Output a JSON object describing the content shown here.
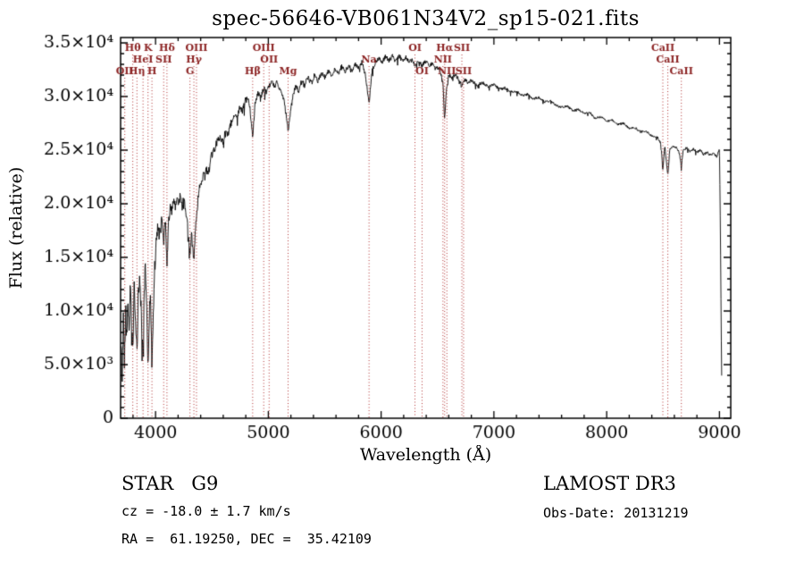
{
  "chart_data": {
    "type": "line",
    "title": "spec-56646-VB061N34V2_sp15-021.fits",
    "xlabel": "Wavelength (Å)",
    "ylabel": "Flux (relative)",
    "xlim": [
      3690,
      9100
    ],
    "ylim": [
      0,
      35500
    ],
    "grid": false,
    "legend": "none",
    "xticks": [
      {
        "value": 4000,
        "label": "4000"
      },
      {
        "value": 5000,
        "label": "5000"
      },
      {
        "value": 6000,
        "label": "6000"
      },
      {
        "value": 7000,
        "label": "7000"
      },
      {
        "value": 8000,
        "label": "8000"
      },
      {
        "value": 9000,
        "label": "9000"
      }
    ],
    "yticks": [
      {
        "value": 0,
        "label": "0"
      },
      {
        "value": 5000,
        "label": "5.0×10³"
      },
      {
        "value": 10000,
        "label": "1.0×10⁴"
      },
      {
        "value": 15000,
        "label": "1.5×10⁴"
      },
      {
        "value": 20000,
        "label": "2.0×10⁴"
      },
      {
        "value": 25000,
        "label": "2.5×10⁴"
      },
      {
        "value": 30000,
        "label": "3.0×10⁴"
      },
      {
        "value": 35000,
        "label": "3.5×10⁴"
      }
    ],
    "x_minor_step": 200,
    "y_minor_step": 1000,
    "series": [
      {
        "name": "spectrum",
        "color": "#000000",
        "points": [
          [
            3695,
            6500
          ],
          [
            3705,
            3800
          ],
          [
            3715,
            9800
          ],
          [
            3725,
            5200
          ],
          [
            3735,
            10500
          ],
          [
            3745,
            6800
          ],
          [
            3755,
            11500
          ],
          [
            3765,
            8000
          ],
          [
            3775,
            12000
          ],
          [
            3785,
            9500
          ],
          [
            3798,
            6200
          ],
          [
            3810,
            11800
          ],
          [
            3822,
            8800
          ],
          [
            3835,
            6000
          ],
          [
            3848,
            12200
          ],
          [
            3860,
            13000
          ],
          [
            3875,
            9200
          ],
          [
            3889,
            5800
          ],
          [
            3900,
            12500
          ],
          [
            3912,
            13800
          ],
          [
            3925,
            9000
          ],
          [
            3933,
            4300
          ],
          [
            3944,
            9500
          ],
          [
            3955,
            12500
          ],
          [
            3968,
            4200
          ],
          [
            3980,
            9800
          ],
          [
            3992,
            14000
          ],
          [
            4005,
            16000
          ],
          [
            4020,
            17800
          ],
          [
            4035,
            16800
          ],
          [
            4050,
            18800
          ],
          [
            4065,
            17500
          ],
          [
            4072,
            16500
          ],
          [
            4085,
            18800
          ],
          [
            4101,
            14200
          ],
          [
            4115,
            18200
          ],
          [
            4130,
            19800
          ],
          [
            4145,
            19200
          ],
          [
            4160,
            20300
          ],
          [
            4175,
            19600
          ],
          [
            4190,
            20600
          ],
          [
            4205,
            19900
          ],
          [
            4220,
            20800
          ],
          [
            4235,
            19800
          ],
          [
            4250,
            20400
          ],
          [
            4265,
            19400
          ],
          [
            4280,
            18400
          ],
          [
            4295,
            16200
          ],
          [
            4305,
            15400
          ],
          [
            4318,
            17200
          ],
          [
            4330,
            15800
          ],
          [
            4340,
            14800
          ],
          [
            4352,
            17600
          ],
          [
            4363,
            18800
          ],
          [
            4378,
            20500
          ],
          [
            4395,
            21800
          ],
          [
            4420,
            22600
          ],
          [
            4445,
            23200
          ],
          [
            4470,
            23000
          ],
          [
            4495,
            24400
          ],
          [
            4520,
            25000
          ],
          [
            4545,
            25800
          ],
          [
            4570,
            26200
          ],
          [
            4595,
            25800
          ],
          [
            4620,
            26800
          ],
          [
            4645,
            26400
          ],
          [
            4670,
            27600
          ],
          [
            4695,
            28200
          ],
          [
            4720,
            28000
          ],
          [
            4745,
            29000
          ],
          [
            4770,
            28600
          ],
          [
            4795,
            29600
          ],
          [
            4820,
            29800
          ],
          [
            4840,
            28600
          ],
          [
            4861,
            26200
          ],
          [
            4882,
            29400
          ],
          [
            4905,
            30400
          ],
          [
            4930,
            29800
          ],
          [
            4955,
            30800
          ],
          [
            4980,
            30400
          ],
          [
            5007,
            30900
          ],
          [
            5030,
            31400
          ],
          [
            5055,
            30800
          ],
          [
            5080,
            31400
          ],
          [
            5105,
            30600
          ],
          [
            5130,
            30000
          ],
          [
            5155,
            28600
          ],
          [
            5175,
            26800
          ],
          [
            5195,
            28400
          ],
          [
            5220,
            30200
          ],
          [
            5245,
            31000
          ],
          [
            5270,
            30400
          ],
          [
            5295,
            31600
          ],
          [
            5320,
            31000
          ],
          [
            5350,
            31800
          ],
          [
            5380,
            31200
          ],
          [
            5410,
            32000
          ],
          [
            5440,
            31400
          ],
          [
            5470,
            32200
          ],
          [
            5500,
            31800
          ],
          [
            5530,
            32400
          ],
          [
            5560,
            31900
          ],
          [
            5590,
            32600
          ],
          [
            5620,
            32100
          ],
          [
            5650,
            32800
          ],
          [
            5680,
            32300
          ],
          [
            5710,
            32900
          ],
          [
            5740,
            32400
          ],
          [
            5770,
            33000
          ],
          [
            5800,
            32600
          ],
          [
            5830,
            33200
          ],
          [
            5860,
            32000
          ],
          [
            5893,
            29400
          ],
          [
            5920,
            32400
          ],
          [
            5950,
            33200
          ],
          [
            5980,
            33600
          ],
          [
            6010,
            33200
          ],
          [
            6040,
            33800
          ],
          [
            6070,
            33300
          ],
          [
            6100,
            33900
          ],
          [
            6130,
            33400
          ],
          [
            6160,
            33800
          ],
          [
            6190,
            33300
          ],
          [
            6220,
            33700
          ],
          [
            6250,
            33200
          ],
          [
            6280,
            33400
          ],
          [
            6300,
            32800
          ],
          [
            6330,
            33300
          ],
          [
            6363,
            32900
          ],
          [
            6400,
            33300
          ],
          [
            6430,
            32900
          ],
          [
            6460,
            33100
          ],
          [
            6490,
            32700
          ],
          [
            6520,
            32600
          ],
          [
            6548,
            31200
          ],
          [
            6563,
            27800
          ],
          [
            6580,
            30800
          ],
          [
            6600,
            32000
          ],
          [
            6630,
            31800
          ],
          [
            6660,
            32000
          ],
          [
            6690,
            31600
          ],
          [
            6716,
            31000
          ],
          [
            6740,
            31600
          ],
          [
            6770,
            31300
          ],
          [
            6800,
            31500
          ],
          [
            6850,
            31100
          ],
          [
            6900,
            31300
          ],
          [
            6950,
            30900
          ],
          [
            7000,
            31100
          ],
          [
            7050,
            30700
          ],
          [
            7100,
            30800
          ],
          [
            7150,
            30400
          ],
          [
            7200,
            30500
          ],
          [
            7250,
            30100
          ],
          [
            7300,
            30200
          ],
          [
            7350,
            29800
          ],
          [
            7400,
            29900
          ],
          [
            7450,
            29500
          ],
          [
            7500,
            29600
          ],
          [
            7550,
            29200
          ],
          [
            7600,
            29000
          ],
          [
            7650,
            29100
          ],
          [
            7700,
            28700
          ],
          [
            7750,
            28800
          ],
          [
            7800,
            28400
          ],
          [
            7850,
            28500
          ],
          [
            7900,
            28000
          ],
          [
            7950,
            28100
          ],
          [
            8000,
            27700
          ],
          [
            8050,
            27800
          ],
          [
            8100,
            27400
          ],
          [
            8150,
            27500
          ],
          [
            8200,
            27000
          ],
          [
            8250,
            27100
          ],
          [
            8300,
            26700
          ],
          [
            8350,
            26800
          ],
          [
            8400,
            26300
          ],
          [
            8450,
            26200
          ],
          [
            8480,
            25600
          ],
          [
            8498,
            23200
          ],
          [
            8515,
            25400
          ],
          [
            8542,
            22600
          ],
          [
            8560,
            25100
          ],
          [
            8590,
            25400
          ],
          [
            8620,
            25200
          ],
          [
            8645,
            24800
          ],
          [
            8662,
            23400
          ],
          [
            8680,
            25100
          ],
          [
            8710,
            25200
          ],
          [
            8740,
            24900
          ],
          [
            8770,
            25100
          ],
          [
            8800,
            24800
          ],
          [
            8830,
            25000
          ],
          [
            8860,
            24600
          ],
          [
            8890,
            24800
          ],
          [
            8920,
            24500
          ],
          [
            8950,
            24700
          ],
          [
            8975,
            24400
          ],
          [
            9000,
            25000
          ],
          [
            9008,
            18000
          ],
          [
            9015,
            9000
          ],
          [
            9020,
            3800
          ]
        ]
      }
    ],
    "noise_profile": [
      [
        3700,
        2200
      ],
      [
        3950,
        1800
      ],
      [
        4100,
        1100
      ],
      [
        4400,
        800
      ],
      [
        4800,
        600
      ],
      [
        5200,
        500
      ],
      [
        5600,
        450
      ],
      [
        6000,
        400
      ],
      [
        6500,
        380
      ],
      [
        7000,
        280
      ],
      [
        7500,
        220
      ],
      [
        8000,
        200
      ],
      [
        8500,
        220
      ],
      [
        9000,
        260
      ]
    ],
    "noise_seed": 42,
    "marker_color": "#b03030",
    "marker_label_color": "#8b2222",
    "line_markers": [
      {
        "label": "OII",
        "wavelength": 3727,
        "row": 2
      },
      {
        "label": "Hθ",
        "wavelength": 3798,
        "row": 0
      },
      {
        "label": "Hη",
        "wavelength": 3835,
        "row": 2
      },
      {
        "label": "HeI",
        "wavelength": 3889,
        "row": 1
      },
      {
        "label": "K",
        "wavelength": 3933,
        "row": 0
      },
      {
        "label": "H",
        "wavelength": 3968,
        "row": 2
      },
      {
        "label": "SII",
        "wavelength": 4072,
        "row": 1
      },
      {
        "label": "Hδ",
        "wavelength": 4101,
        "row": 0
      },
      {
        "label": "G",
        "wavelength": 4305,
        "row": 2
      },
      {
        "label": "Hγ",
        "wavelength": 4340,
        "row": 1
      },
      {
        "label": "OIII",
        "wavelength": 4363,
        "row": 0
      },
      {
        "label": "Hβ",
        "wavelength": 4861,
        "row": 2
      },
      {
        "label": "OIII",
        "wavelength": 4959,
        "row": 0
      },
      {
        "label": "OII",
        "wavelength": 5007,
        "row": 1
      },
      {
        "label": "Mg",
        "wavelength": 5175,
        "row": 2
      },
      {
        "label": "Na",
        "wavelength": 5893,
        "row": 1
      },
      {
        "label": "OI",
        "wavelength": 6300,
        "row": 0
      },
      {
        "label": "OI",
        "wavelength": 6363,
        "row": 2
      },
      {
        "label": "NII",
        "wavelength": 6548,
        "row": 1
      },
      {
        "label": "Hα",
        "wavelength": 6563,
        "row": 0
      },
      {
        "label": "NII",
        "wavelength": 6583,
        "row": 2
      },
      {
        "label": "SII",
        "wavelength": 6716,
        "row": 0
      },
      {
        "label": "SII",
        "wavelength": 6731,
        "row": 2
      },
      {
        "label": "CaII",
        "wavelength": 8498,
        "row": 0
      },
      {
        "label": "CaII",
        "wavelength": 8542,
        "row": 1
      },
      {
        "label": "CaII",
        "wavelength": 8662,
        "row": 2
      }
    ]
  },
  "annotations": {
    "class_line": "STAR   G9",
    "cz_line": "cz = -18.0 ± 1.7 km/s",
    "radec_line": "RA =  61.19250, DEC =  35.42109",
    "survey": "LAMOST DR3",
    "obs_date": "Obs-Date: 20131219"
  }
}
